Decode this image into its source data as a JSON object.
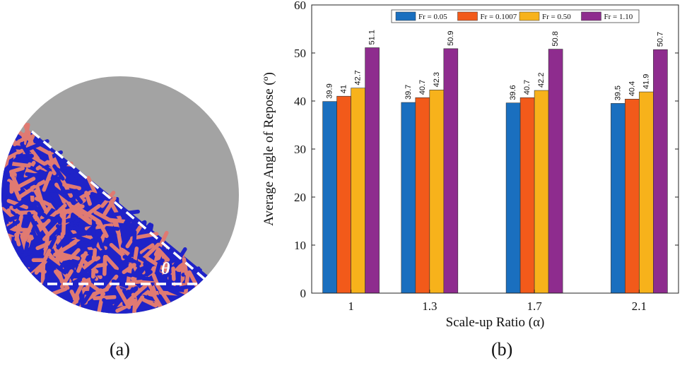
{
  "figure": {
    "panel_a_caption": "(a)",
    "panel_b_caption": "(b)",
    "angle_symbol": "θ"
  },
  "colors": {
    "drum_fill": "#a3a3a3",
    "particle_blue": "#1f23c8",
    "particle_red": "#e07a72",
    "dashed_line": "#ffffff"
  },
  "chart_data": {
    "type": "bar",
    "title": "",
    "xlabel": "Scale-up Ratio (α)",
    "ylabel": "Average Angle of Repose (º)",
    "ylim": [
      0,
      60
    ],
    "yticks": [
      0,
      10,
      20,
      30,
      40,
      50,
      60
    ],
    "categories": [
      "1",
      "1.3",
      "1.7",
      "2.1"
    ],
    "category_x": [
      1,
      1.3,
      1.7,
      2.1
    ],
    "xlim": [
      0.85,
      2.25
    ],
    "grid": false,
    "legend_position": "top-center",
    "series": [
      {
        "name": "Fr = 0.05",
        "color": "#1a6fbf",
        "values": [
          39.9,
          39.7,
          39.6,
          39.5
        ],
        "labels": [
          "39.9",
          "39.7",
          "39.6",
          "39.5"
        ]
      },
      {
        "name": "Fr = 0.1007",
        "color": "#f25a1a",
        "values": [
          41,
          40.7,
          40.7,
          40.4
        ],
        "labels": [
          "41",
          "40.7",
          "40.7",
          "40.4"
        ]
      },
      {
        "name": "Fr = 0.50",
        "color": "#f7b21b",
        "values": [
          42.7,
          42.3,
          42.2,
          41.9
        ],
        "labels": [
          "42.7",
          "42.3",
          "42.2",
          "41.9"
        ]
      },
      {
        "name": "Fr = 1.10",
        "color": "#8e2c8e",
        "values": [
          51.1,
          50.9,
          50.8,
          50.7
        ],
        "labels": [
          "51.1",
          "50.9",
          "50.8",
          "50.7"
        ]
      }
    ]
  }
}
